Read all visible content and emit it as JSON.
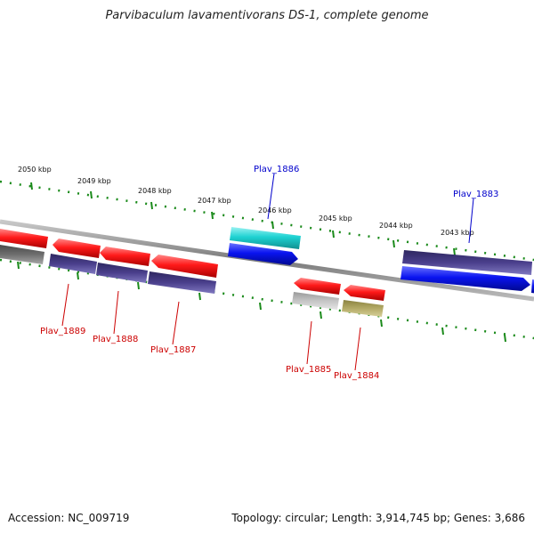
{
  "title": "Parvibaculum lavamentivorans DS-1, complete genome",
  "footer": {
    "accession": "Accession: NC_009719",
    "summary": "Topology: circular; Length: 3,914,745 bp; Genes: 3,686"
  },
  "scale": {
    "unit": "kbp",
    "ticks": [
      {
        "label": "2050 kbp",
        "kbp": 2050
      },
      {
        "label": "2049 kbp",
        "kbp": 2049
      },
      {
        "label": "2048 kbp",
        "kbp": 2048
      },
      {
        "label": "2047 kbp",
        "kbp": 2047
      },
      {
        "label": "2046 kbp",
        "kbp": 2046
      },
      {
        "label": "2045 kbp",
        "kbp": 2045
      },
      {
        "label": "2044 kbp",
        "kbp": 2044
      },
      {
        "label": "2043 kbp",
        "kbp": 2043
      }
    ]
  },
  "colors": {
    "cds": "#ff1a1a",
    "gene_blue": "#0a14f0",
    "gene_cyan": "#1ed2d2",
    "cog_purple": "#4a3f8c",
    "cog_gray": "#6e6e6e",
    "cog_lightgray": "#c4c4c4",
    "cog_khaki": "#b3aa66",
    "backbone": "#8a8a8a",
    "tick": "#1a8a1a",
    "label_red": "#cc0000",
    "label_blue": "#0000cc"
  },
  "gene_labels": [
    {
      "id": "Plav_1889",
      "label": "Plav_1889",
      "strand": "reverse"
    },
    {
      "id": "Plav_1888",
      "label": "Plav_1888",
      "strand": "reverse"
    },
    {
      "id": "Plav_1887",
      "label": "Plav_1887",
      "strand": "reverse"
    },
    {
      "id": "Plav_1886",
      "label": "Plav_1886",
      "strand": "forward"
    },
    {
      "id": "Plav_1885",
      "label": "Plav_1885",
      "strand": "reverse"
    },
    {
      "id": "Plav_1884",
      "label": "Plav_1884",
      "strand": "reverse"
    },
    {
      "id": "Plav_1883",
      "label": "Plav_1883",
      "strand": "forward"
    }
  ]
}
